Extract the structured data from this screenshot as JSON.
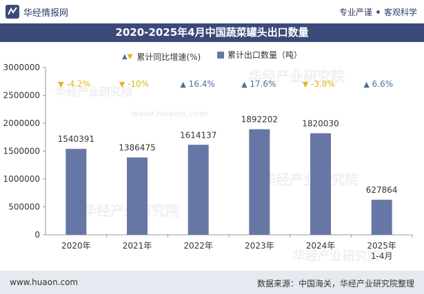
{
  "header": {
    "brand_name": "华经情报网",
    "tag1": "专业严谨",
    "tag2": "客观科学"
  },
  "legend": {
    "growth_label": "累计同比增速(%)",
    "export_label": "累计出口数量（吨）"
  },
  "watermark": {
    "text": "华经产业研究院",
    "url": "www.huaon.com"
  },
  "footer": {
    "website": "www.huaon.com",
    "source": "数据来源：中国海关，华经产业研究院整理"
  },
  "colors": {
    "bar": "#6677a6",
    "up": "#4a6fa0",
    "down": "#e0b41a",
    "title_bg": "#3b4a78"
  },
  "chart_data": {
    "type": "bar",
    "title": "2020-2025年4月中国蔬菜罐头出口数量",
    "categories": [
      "2020年",
      "2021年",
      "2022年",
      "2023年",
      "2024年",
      "2025年\n1-4月"
    ],
    "series": [
      {
        "name": "累计出口数量（吨）",
        "values": [
          1540391,
          1386475,
          1614137,
          1892202,
          1820030,
          627864
        ]
      },
      {
        "name": "累计同比增速(%)",
        "values": [
          -4.2,
          -10,
          16.4,
          17.6,
          -3.8,
          6.6
        ]
      }
    ],
    "growth_labels": [
      "-4.2%",
      "-10%",
      "16.4%",
      "17.6%",
      "-3.8%",
      "6.6%"
    ],
    "ylim": [
      0,
      3000000
    ],
    "yticks": [
      0,
      500000,
      1000000,
      1500000,
      2000000,
      2500000,
      3000000
    ],
    "grid": false,
    "legend_position": "top-center"
  }
}
